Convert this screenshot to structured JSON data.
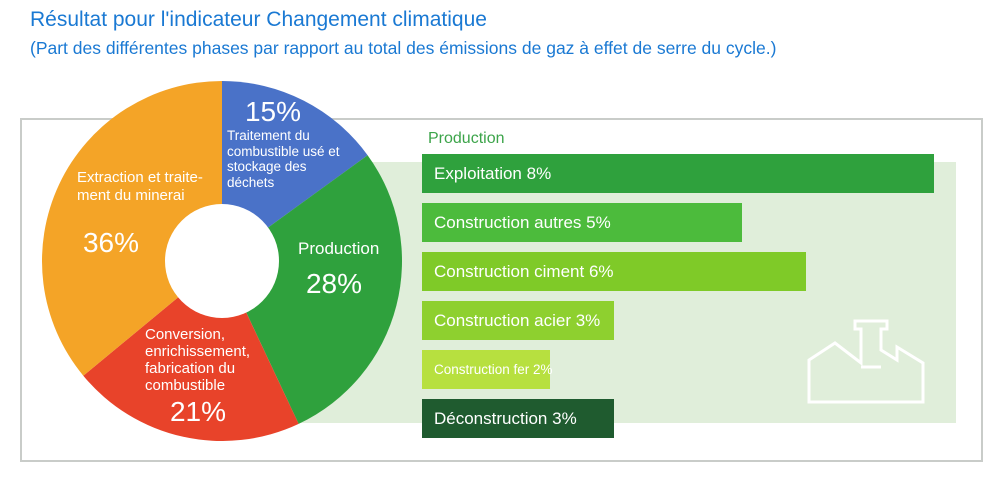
{
  "header": {
    "title": "Résultat pour l'indicateur Changement climatique",
    "subtitle": "(Part des différentes phases par rapport au total des émissions de gaz à effet de serre du cycle.)"
  },
  "colors": {
    "title_text": "#1a79d3",
    "panel_background": "#e0eeda",
    "bars_header_text": "#3ca44a",
    "container_border": "#c9ccc9",
    "donut_label_text": "#ffffff",
    "bar_label_text": "#ffffff"
  },
  "donut_labels": {
    "traitement": {
      "pct": "15%",
      "text": "Traitement du\ncombustible usé et\nstockage des\ndéchets"
    },
    "production": {
      "pct": "28%",
      "text": "Production"
    },
    "conversion": {
      "pct": "21%",
      "text": "Conversion,\nenrichissement,\nfabrication du\ncombustible"
    },
    "extraction": {
      "pct": "36%",
      "text": "Extraction et traite-\nment du minerai"
    }
  },
  "bars": {
    "header": "Production"
  },
  "panel": {
    "icon": "factory-outline-icon"
  },
  "chart_data": [
    {
      "type": "pie",
      "donut": true,
      "unit": "%",
      "start_angle_deg": 0,
      "direction": "clockwise",
      "legend_position": "inside",
      "segments": [
        {
          "id": "traitement-combustible-use",
          "label": "Traitement du combustible usé et stockage des déchets",
          "value": 15,
          "color": "#4a72c8"
        },
        {
          "id": "production",
          "label": "Production",
          "value": 28,
          "color": "#2fa13d"
        },
        {
          "id": "conversion-enrichissement-fabrication",
          "label": "Conversion, enrichissement, fabrication du combustible",
          "value": 21,
          "color": "#e8432a"
        },
        {
          "id": "extraction-traitement-minerai",
          "label": "Extraction et traitement du minerai",
          "value": 36,
          "color": "#f4a427"
        }
      ]
    },
    {
      "type": "bar",
      "orientation": "horizontal",
      "title": "Production",
      "unit": "%",
      "axis_hidden": true,
      "ids": [
        "exploitation",
        "construction-autres",
        "construction-ciment",
        "construction-acier",
        "construction-fer",
        "deconstruction"
      ],
      "categories": [
        "Exploitation",
        "Construction autres",
        "Construction ciment",
        "Construction acier",
        "Construction fer",
        "Déconstruction"
      ],
      "values": [
        8,
        5,
        6,
        3,
        2,
        3
      ],
      "bar_labels": [
        "Exploitation 8%",
        "Construction autres 5%",
        "Construction ciment 6%",
        "Construction acier 3%",
        "Construction fer 2%",
        "Déconstruction 3%"
      ],
      "colors": [
        "#2fa13d",
        "#4cbb3c",
        "#7fca28",
        "#8ed02f",
        "#b7e03f",
        "#1f5b2f"
      ],
      "small_text_flags": [
        false,
        false,
        false,
        false,
        true,
        false
      ]
    }
  ]
}
